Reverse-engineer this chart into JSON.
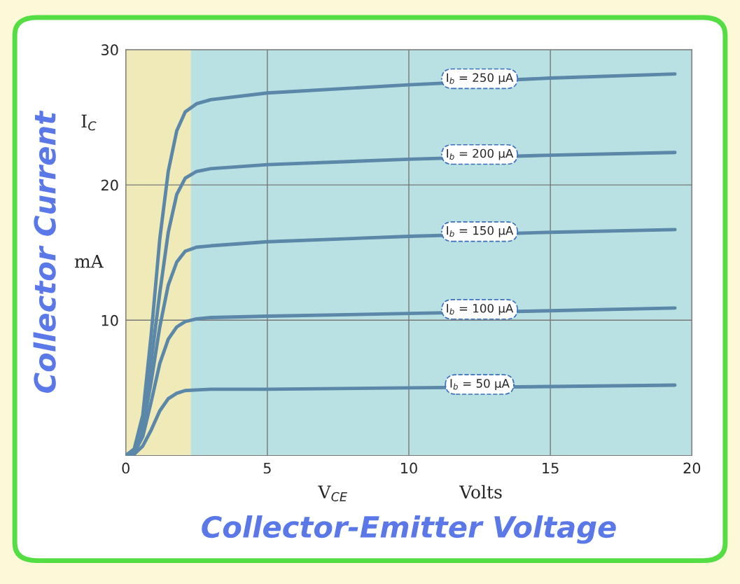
{
  "chart_data": {
    "type": "line",
    "xlabel": "Collector-Emitter Voltage",
    "ylabel": "Collector Current",
    "annotations": [
      "I$_{C}$",
      "mA",
      "V$_{CE}$",
      "Volts"
    ],
    "x": [
      0,
      0.3,
      0.6,
      0.9,
      1.2,
      1.5,
      1.8,
      2.1,
      2.5,
      3,
      5,
      10,
      15,
      19.4
    ],
    "series": [
      {
        "name": "I$_{b}$ = 250 µA",
        "color": "#5b87a8",
        "values": [
          0,
          0.5,
          3,
          9,
          16,
          21,
          24,
          25.4,
          26.0,
          26.3,
          26.8,
          27.4,
          27.9,
          28.2
        ]
      },
      {
        "name": "I$_{b}$ = 200 µA",
        "color": "#5b87a8",
        "values": [
          0,
          0.4,
          2.5,
          7,
          12,
          16.5,
          19.3,
          20.5,
          21.0,
          21.2,
          21.5,
          21.9,
          22.2,
          22.4
        ]
      },
      {
        "name": "I$_{b}$ = 150 µA",
        "color": "#5b87a8",
        "values": [
          0,
          0.3,
          2,
          5.5,
          9.5,
          12.6,
          14.3,
          15.1,
          15.4,
          15.5,
          15.8,
          16.2,
          16.5,
          16.7
        ]
      },
      {
        "name": "I$_{b}$ = 100 µA",
        "color": "#5b87a8",
        "values": [
          0,
          0.2,
          1.4,
          4,
          6.8,
          8.6,
          9.5,
          9.9,
          10.1,
          10.2,
          10.3,
          10.5,
          10.7,
          10.9
        ]
      },
      {
        "name": "I$_{b}$ = 50 µA",
        "color": "#5b87a8",
        "values": [
          0,
          0.1,
          0.7,
          1.9,
          3.3,
          4.2,
          4.6,
          4.8,
          4.85,
          4.9,
          4.9,
          5.0,
          5.1,
          5.2
        ]
      }
    ],
    "bands": [
      {
        "axis": "x",
        "from": 0,
        "to": 2.3,
        "color": "#efeab8"
      }
    ],
    "xlim": [
      0,
      20
    ],
    "ylim": [
      0,
      30
    ],
    "xticks": [
      0,
      5,
      10,
      15,
      20
    ],
    "yticks": [
      10,
      20,
      30
    ],
    "grid": true,
    "legend": false,
    "line_style": "solid",
    "marker": "none"
  }
}
